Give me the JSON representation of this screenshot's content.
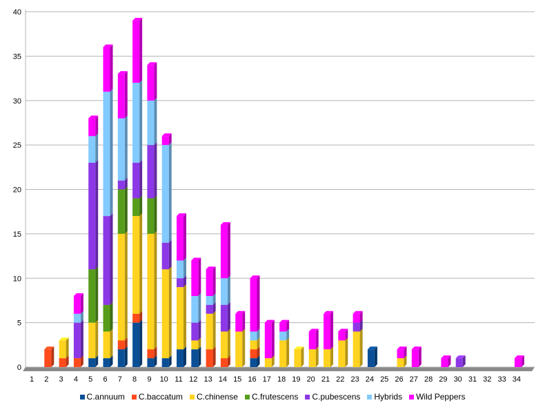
{
  "chart_data": {
    "type": "bar",
    "stacked": true,
    "categories": [
      "1",
      "2",
      "3",
      "4",
      "5",
      "6",
      "7",
      "8",
      "9",
      "10",
      "11",
      "12",
      "13",
      "14",
      "15",
      "16",
      "17",
      "18",
      "19",
      "20",
      "21",
      "22",
      "23",
      "24",
      "25",
      "26",
      "27",
      "28",
      "29",
      "30",
      "31",
      "32",
      "33",
      "34"
    ],
    "ylim": [
      0,
      40
    ],
    "yticks": [
      0,
      5,
      10,
      15,
      20,
      25,
      30,
      35,
      40
    ],
    "grid": true,
    "legend_position": "bottom",
    "series": [
      {
        "name": "C.annuum",
        "color": "#0a4f96",
        "values": [
          0,
          0,
          0,
          0,
          1,
          1,
          2,
          5,
          1,
          1,
          2,
          2,
          0,
          0,
          0,
          1,
          0,
          0,
          0,
          0,
          0,
          0,
          0,
          2,
          0,
          0,
          0,
          0,
          0,
          0,
          0,
          0,
          0,
          0
        ]
      },
      {
        "name": "C.baccatum",
        "color": "#ff4a1c",
        "values": [
          0,
          2,
          1,
          1,
          0,
          0,
          1,
          1,
          1,
          0,
          0,
          0,
          2,
          1,
          0,
          1,
          0,
          0,
          0,
          0,
          0,
          0,
          0,
          0,
          0,
          0,
          0,
          0,
          0,
          0,
          0,
          0,
          0,
          0
        ]
      },
      {
        "name": "C.chinense",
        "color": "#ffd320",
        "values": [
          0,
          0,
          2,
          0,
          4,
          3,
          12,
          11,
          13,
          10,
          7,
          1,
          4,
          3,
          4,
          1,
          1,
          3,
          2,
          2,
          2,
          3,
          4,
          0,
          0,
          1,
          0,
          0,
          0,
          0,
          0,
          0,
          0,
          0
        ]
      },
      {
        "name": "C.frutescens",
        "color": "#579d1c",
        "values": [
          0,
          0,
          0,
          0,
          6,
          3,
          5,
          2,
          4,
          0,
          0,
          0,
          0,
          0,
          0,
          0,
          0,
          0,
          0,
          0,
          0,
          0,
          0,
          0,
          0,
          0,
          0,
          0,
          0,
          0,
          0,
          0,
          0,
          0
        ]
      },
      {
        "name": "C.pubescens",
        "color": "#8c38e6",
        "values": [
          0,
          0,
          0,
          4,
          12,
          10,
          1,
          4,
          6,
          3,
          1,
          2,
          1,
          3,
          0,
          0,
          0,
          0,
          0,
          0,
          0,
          0,
          1,
          0,
          0,
          0,
          0,
          0,
          0,
          1,
          0,
          0,
          0,
          0
        ]
      },
      {
        "name": "Hybrids",
        "color": "#83caff",
        "values": [
          0,
          0,
          0,
          1,
          3,
          14,
          7,
          9,
          5,
          11,
          2,
          3,
          1,
          3,
          0,
          1,
          0,
          1,
          0,
          0,
          0,
          0,
          0,
          0,
          0,
          0,
          0,
          0,
          0,
          0,
          0,
          0,
          0,
          0
        ]
      },
      {
        "name": "Wild Peppers",
        "color": "#ff00ff",
        "values": [
          0,
          0,
          0,
          2,
          2,
          5,
          5,
          7,
          4,
          1,
          5,
          4,
          3,
          6,
          2,
          6,
          4,
          1,
          0,
          2,
          4,
          1,
          1,
          0,
          0,
          1,
          2,
          0,
          1,
          0,
          0,
          0,
          0,
          1
        ]
      }
    ]
  }
}
